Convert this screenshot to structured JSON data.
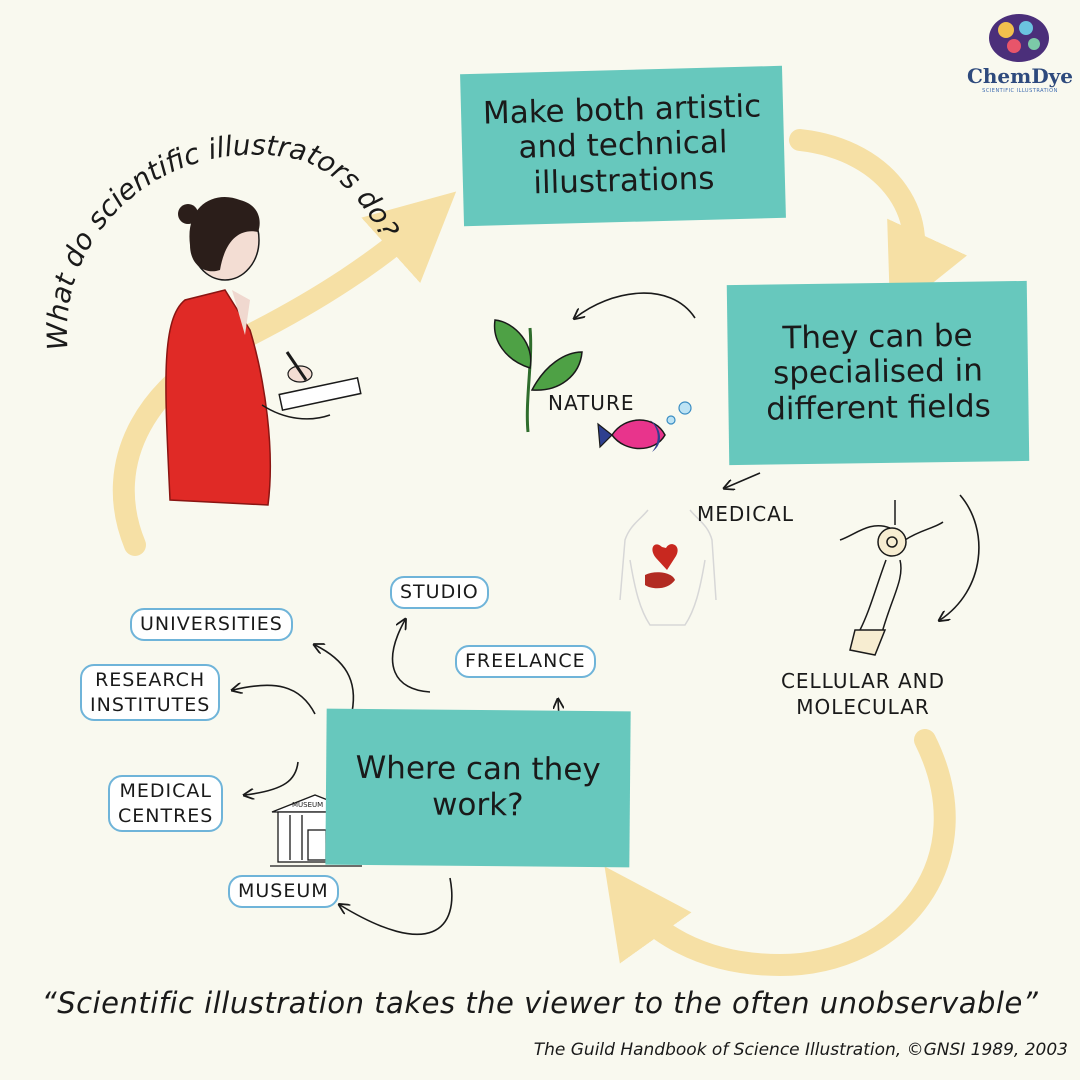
{
  "title": "What do scientific illustrators do?",
  "logo": {
    "name": "ChemDye",
    "tagline": "SCIENTIFIC ILLUSTRATION"
  },
  "boxes": {
    "artistic": "Make both artistic\nand technical\nillustrations",
    "specialised": "They can be\nspecialised in\ndifferent fields",
    "work": "Where can they\nwork?"
  },
  "fields": {
    "nature": "NATURE",
    "medical": "MEDICAL",
    "cellular": "CELLULAR AND\nMOLECULAR"
  },
  "workplaces": {
    "studio": "STUDIO",
    "universities": "UNIVERSITIES",
    "freelance": "FREELANCE",
    "research": "RESEARCH\nINSTITUTES",
    "medical_centres": "MEDICAL\nCENTRES",
    "museum": "MUSEUM",
    "museum_sign": "MUSEUM"
  },
  "quote": "“Scientific illustration takes the viewer to the often unobservable”",
  "citation": "The Guild Handbook of Science Illustration, ©GNSI 1989, 2003",
  "colors": {
    "background": "#f9f9ef",
    "box": "#67c8bd",
    "cycle_arrow": "#f6dfa2",
    "figure_shirt": "#e02a26",
    "cloud_border": "#6fb4d9"
  },
  "icons": [
    "plant-icon",
    "fish-icon",
    "torso-icon",
    "heart-icon",
    "neuron-icon",
    "museum-building-icon",
    "illustrator-figure"
  ]
}
